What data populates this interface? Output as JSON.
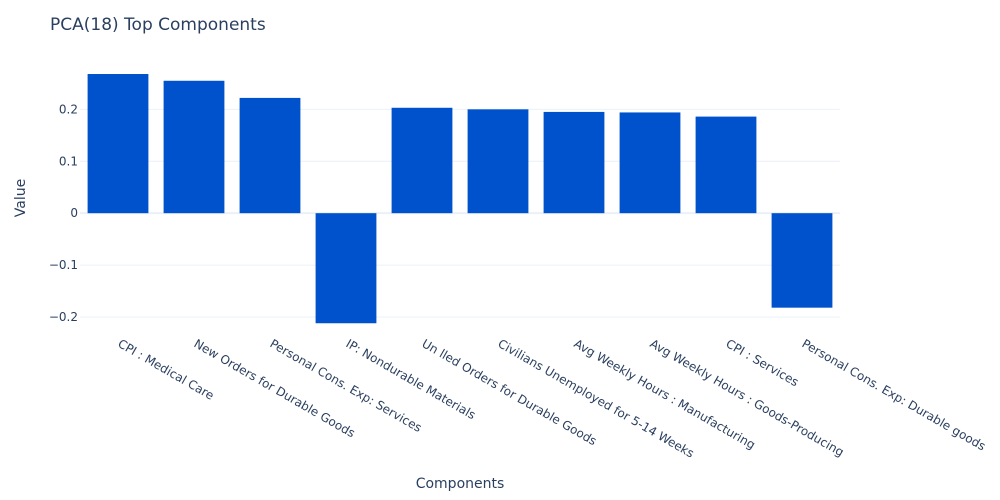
{
  "chart_data": {
    "type": "bar",
    "title": "PCA(18) Top Components",
    "xlabel": "Components",
    "ylabel": "Value",
    "categories": [
      "CPI : Medical Care",
      "New Orders for Durable Goods",
      "Personal Cons. Exp: Services",
      "IP: Nondurable Materials",
      "Un lled Orders for Durable Goods",
      "Civilians Unemployed for 5-14 Weeks",
      "Avg Weekly Hours : Manufacturing",
      "Avg Weekly Hours : Goods-Producing",
      "CPI : Services",
      "Personal Cons. Exp: Durable goods"
    ],
    "values": [
      0.268,
      0.255,
      0.222,
      -0.212,
      0.203,
      0.2,
      0.195,
      0.194,
      0.186,
      -0.182
    ],
    "yticks": [
      -0.2,
      -0.1,
      0,
      0.1,
      0.2
    ],
    "ytick_labels": [
      "−0.2",
      "−0.1",
      "0",
      "0.1",
      "0.2"
    ],
    "ylim": [
      -0.225,
      0.295
    ],
    "grid": true,
    "bar_color": "#0052cc"
  }
}
